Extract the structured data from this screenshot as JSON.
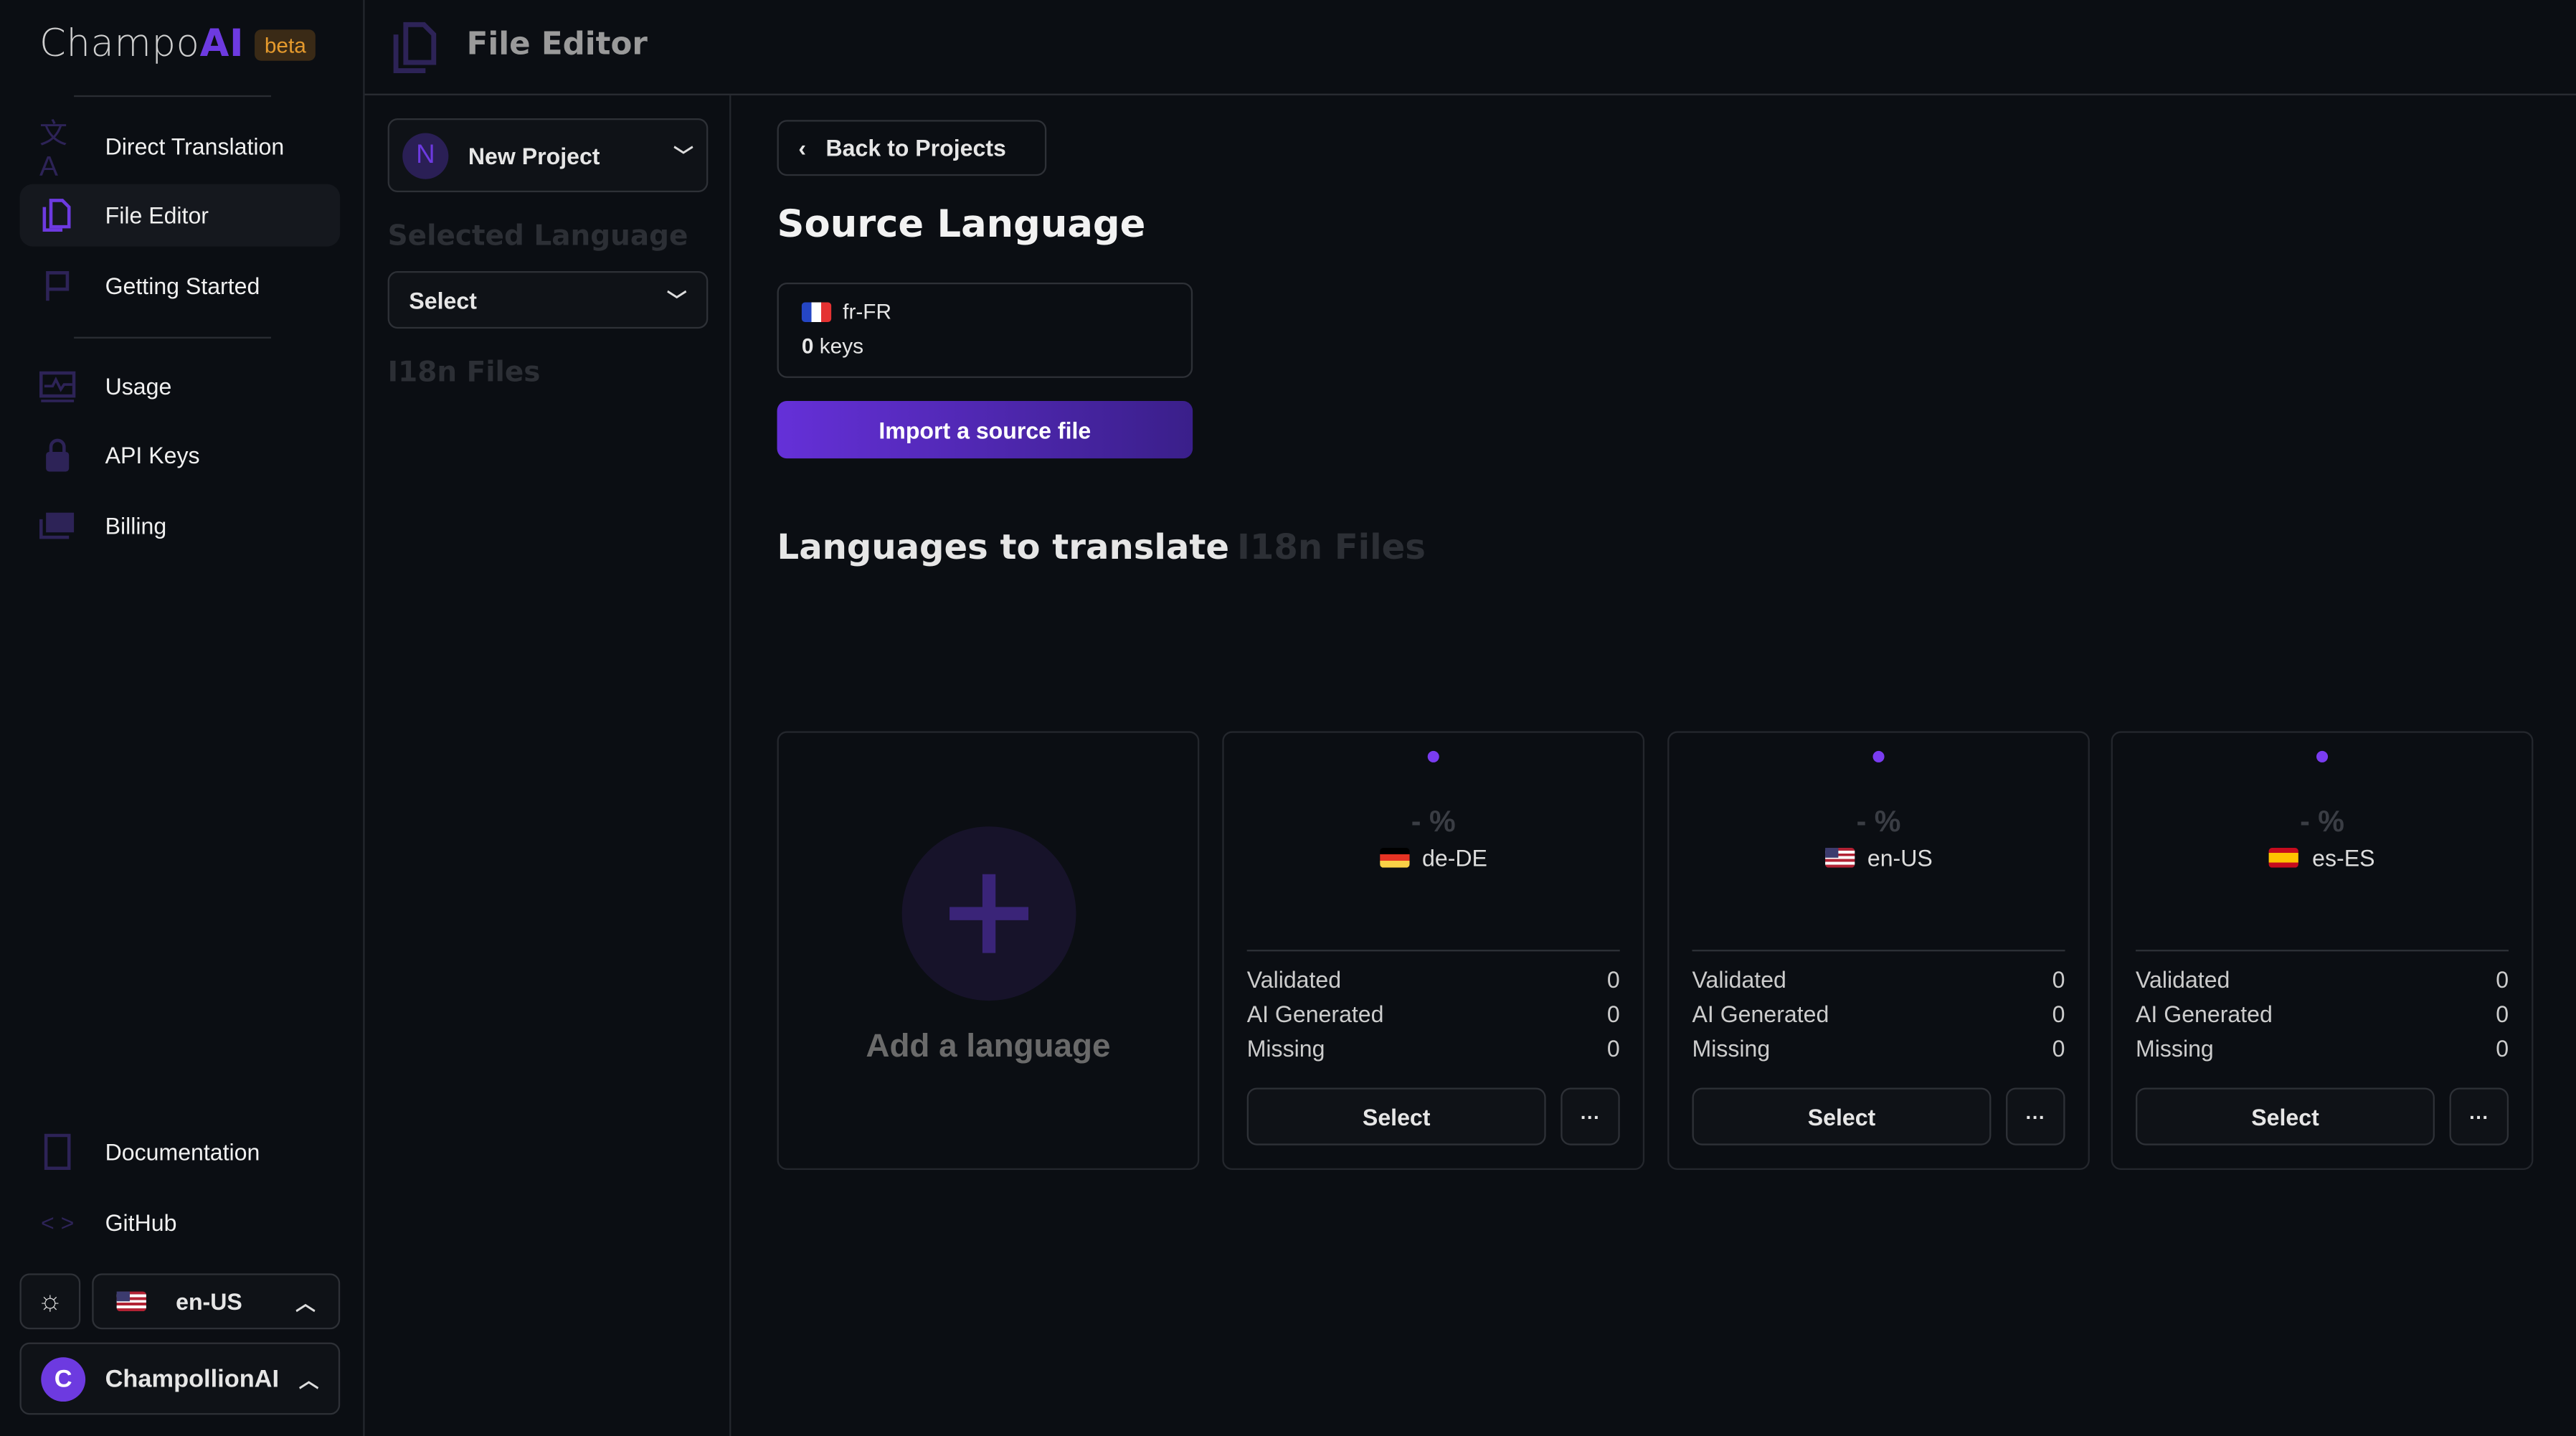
{
  "brand": {
    "name_plain": "Champo",
    "name_accent": "AI",
    "badge": "beta"
  },
  "sidebar": {
    "items": [
      {
        "label": "Direct Translation",
        "icon": "translate-icon"
      },
      {
        "label": "File Editor",
        "icon": "file-copy-icon",
        "active": true
      },
      {
        "label": "Getting Started",
        "icon": "flag-icon"
      },
      {
        "label": "Usage",
        "icon": "chart-monitor-icon"
      },
      {
        "label": "API Keys",
        "icon": "lock-icon"
      },
      {
        "label": "Billing",
        "icon": "money-icon"
      },
      {
        "label": "Documentation",
        "icon": "book-icon"
      },
      {
        "label": "GitHub",
        "icon": "code-icon"
      }
    ],
    "locale": "en-US",
    "user": {
      "initial": "C",
      "name": "ChampollionAI"
    }
  },
  "header": {
    "title": "File Editor"
  },
  "project_panel": {
    "project_initial": "N",
    "project_name": "New Project",
    "selected_language_label": "Selected Language",
    "language_select": "Select",
    "files_label": "I18n Files"
  },
  "main": {
    "back": "Back to Projects",
    "source_title": "Source Language",
    "source": {
      "locale": "fr-FR",
      "keys_count": "0",
      "keys_label": "keys"
    },
    "import_button": "Import a source file",
    "tabs": [
      {
        "label": "Languages to translate",
        "active": true
      },
      {
        "label": "I18n Files"
      }
    ],
    "add_language": "Add a language",
    "cards": [
      {
        "percent": "- %",
        "locale": "de-DE",
        "flag": "de",
        "stats": [
          {
            "label": "Validated",
            "value": "0"
          },
          {
            "label": "AI Generated",
            "value": "0"
          },
          {
            "label": "Missing",
            "value": "0"
          }
        ],
        "select": "Select",
        "more": "···"
      },
      {
        "percent": "- %",
        "locale": "en-US",
        "flag": "us",
        "stats": [
          {
            "label": "Validated",
            "value": "0"
          },
          {
            "label": "AI Generated",
            "value": "0"
          },
          {
            "label": "Missing",
            "value": "0"
          }
        ],
        "select": "Select",
        "more": "···"
      },
      {
        "percent": "- %",
        "locale": "es-ES",
        "flag": "es",
        "stats": [
          {
            "label": "Validated",
            "value": "0"
          },
          {
            "label": "AI Generated",
            "value": "0"
          },
          {
            "label": "Missing",
            "value": "0"
          }
        ],
        "select": "Select",
        "more": "···"
      }
    ]
  },
  "colors": {
    "accent": "#6d3ae0",
    "background": "#0b0e13",
    "beta": "#e59a2d"
  }
}
